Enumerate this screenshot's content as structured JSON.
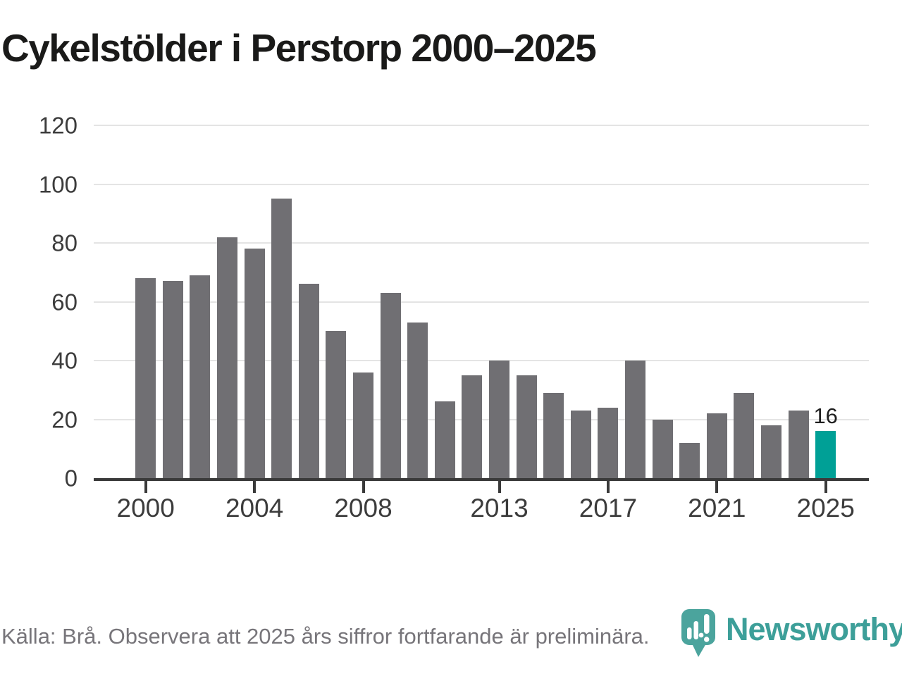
{
  "title": "Cykelstölder i Perstorp 2000–2025",
  "footer": {
    "source_note": "Källa: Brå. Observera att 2025 års siffror fortfarande är preliminära.",
    "brand_name": "Newsworthy"
  },
  "colors": {
    "bar": "#706f73",
    "highlight": "#00a096",
    "axis": "#3a3a3a",
    "gridline": "#e4e4e4",
    "tick_label": "#3c3c3c",
    "brand_teal": "#3d9f99"
  },
  "chart_data": {
    "type": "bar",
    "title": "Cykelstölder i Perstorp 2000–2025",
    "categories": [
      2000,
      2001,
      2002,
      2003,
      2004,
      2005,
      2006,
      2007,
      2008,
      2009,
      2010,
      2011,
      2012,
      2013,
      2014,
      2015,
      2016,
      2017,
      2018,
      2019,
      2020,
      2021,
      2022,
      2023,
      2024,
      2025
    ],
    "values": [
      68,
      67,
      69,
      82,
      78,
      95,
      66,
      50,
      36,
      63,
      53,
      26,
      35,
      40,
      35,
      29,
      23,
      24,
      40,
      20,
      12,
      22,
      29,
      18,
      23,
      16
    ],
    "highlight_index": 25,
    "highlight_label": "16",
    "ylim": [
      0,
      120
    ],
    "y_ticks": [
      0,
      20,
      40,
      60,
      80,
      100,
      120
    ],
    "x_ticks": [
      {
        "label": "2000",
        "index": 0
      },
      {
        "label": "2004",
        "index": 4
      },
      {
        "label": "2008",
        "index": 8
      },
      {
        "label": "2013",
        "index": 13
      },
      {
        "label": "2017",
        "index": 17
      },
      {
        "label": "2021",
        "index": 21
      },
      {
        "label": "2025",
        "index": 25
      }
    ],
    "grid": true,
    "legend": false,
    "xlabel": "",
    "ylabel": ""
  }
}
